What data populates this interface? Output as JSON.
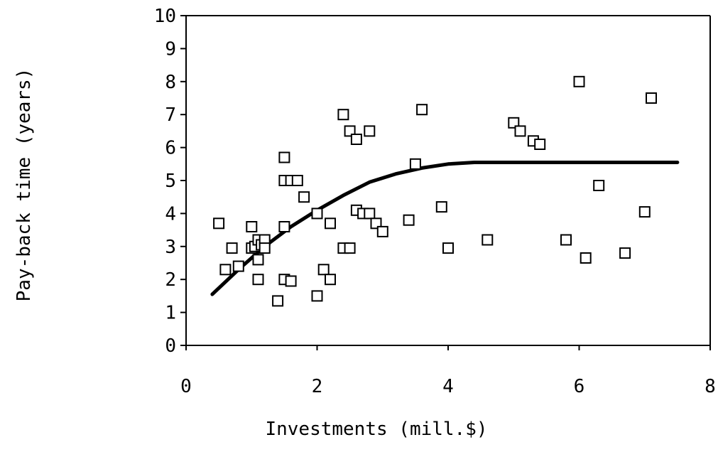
{
  "chart_data": {
    "type": "scatter",
    "title": "",
    "xlabel": "Investments (mill.$)",
    "ylabel": "Pay-back time (years)",
    "xlim": [
      0,
      8
    ],
    "ylim": [
      0,
      10
    ],
    "x_ticks": [
      0,
      2,
      4,
      6,
      8
    ],
    "y_ticks": [
      0,
      1,
      2,
      3,
      4,
      5,
      6,
      7,
      8,
      9,
      10
    ],
    "grid": false,
    "series": [
      {
        "marker": "open-square",
        "points": [
          [
            0.5,
            3.7
          ],
          [
            0.6,
            2.3
          ],
          [
            0.7,
            2.95
          ],
          [
            0.8,
            2.4
          ],
          [
            1.0,
            3.6
          ],
          [
            1.0,
            2.95
          ],
          [
            1.05,
            3.0
          ],
          [
            1.1,
            3.2
          ],
          [
            1.1,
            2.6
          ],
          [
            1.1,
            2.0
          ],
          [
            1.15,
            3.05
          ],
          [
            1.2,
            3.2
          ],
          [
            1.2,
            2.95
          ],
          [
            1.4,
            1.35
          ],
          [
            1.5,
            5.7
          ],
          [
            1.5,
            5.0
          ],
          [
            1.5,
            3.6
          ],
          [
            1.5,
            2.0
          ],
          [
            1.6,
            5.0
          ],
          [
            1.6,
            1.95
          ],
          [
            1.7,
            5.0
          ],
          [
            1.8,
            4.5
          ],
          [
            2.0,
            4.0
          ],
          [
            2.0,
            1.5
          ],
          [
            2.1,
            2.3
          ],
          [
            2.2,
            3.7
          ],
          [
            2.2,
            2.0
          ],
          [
            2.4,
            7.0
          ],
          [
            2.4,
            2.95
          ],
          [
            2.5,
            6.5
          ],
          [
            2.5,
            2.95
          ],
          [
            2.6,
            6.25
          ],
          [
            2.6,
            4.1
          ],
          [
            2.7,
            4.0
          ],
          [
            2.8,
            6.5
          ],
          [
            2.8,
            4.0
          ],
          [
            2.9,
            3.7
          ],
          [
            3.0,
            3.45
          ],
          [
            3.4,
            3.8
          ],
          [
            3.5,
            5.5
          ],
          [
            3.6,
            7.15
          ],
          [
            3.9,
            4.2
          ],
          [
            4.0,
            2.95
          ],
          [
            4.6,
            3.2
          ],
          [
            5.0,
            6.75
          ],
          [
            5.1,
            6.5
          ],
          [
            5.3,
            6.2
          ],
          [
            5.4,
            6.1
          ],
          [
            5.8,
            3.2
          ],
          [
            6.0,
            8.0
          ],
          [
            6.1,
            2.65
          ],
          [
            6.3,
            4.85
          ],
          [
            6.7,
            2.8
          ],
          [
            7.0,
            4.05
          ],
          [
            7.1,
            7.5
          ]
        ]
      },
      {
        "style": "line",
        "points": [
          [
            0.4,
            1.55
          ],
          [
            0.8,
            2.3
          ],
          [
            1.2,
            3.0
          ],
          [
            1.6,
            3.6
          ],
          [
            2.0,
            4.1
          ],
          [
            2.4,
            4.55
          ],
          [
            2.8,
            4.95
          ],
          [
            3.2,
            5.2
          ],
          [
            3.6,
            5.38
          ],
          [
            4.0,
            5.5
          ],
          [
            4.4,
            5.55
          ],
          [
            5.0,
            5.55
          ],
          [
            6.0,
            5.55
          ],
          [
            7.0,
            5.55
          ],
          [
            7.5,
            5.55
          ]
        ]
      }
    ]
  }
}
